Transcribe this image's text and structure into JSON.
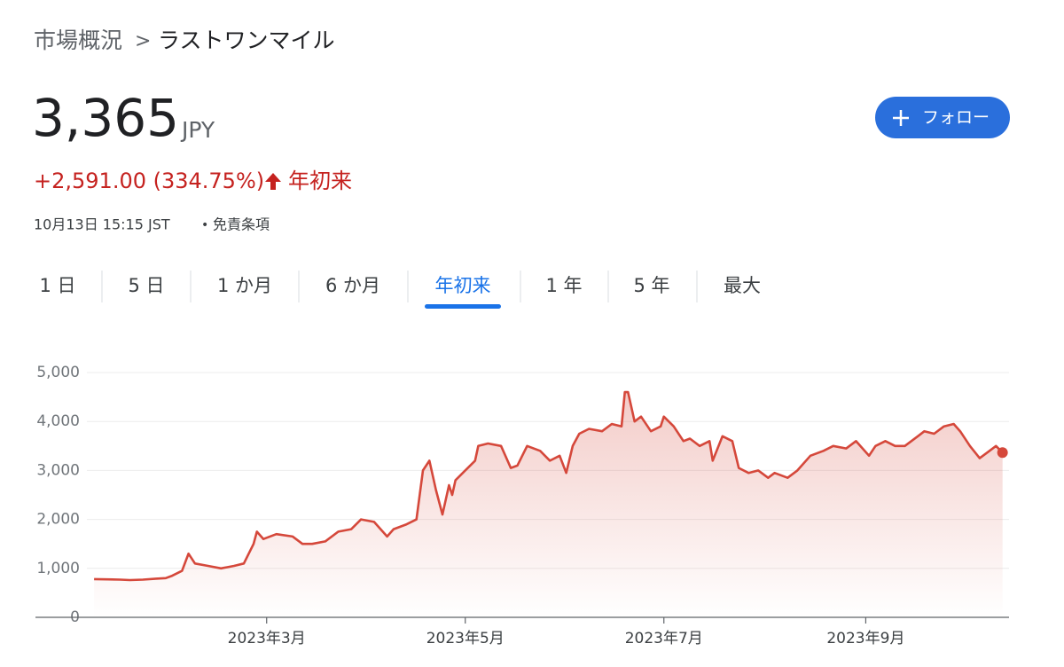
{
  "breadcrumb": {
    "parent": "市場概況",
    "separator": ">",
    "current": "ラストワンマイル"
  },
  "quote": {
    "price": "3,365",
    "currency": "JPY",
    "change": "+2,591.00 (334.75%)",
    "period": "年初来",
    "timestamp": "10月13日 15:15 JST",
    "bullet": "•",
    "disclaimer": "免責条項"
  },
  "follow_button": {
    "label": "フォロー"
  },
  "tabs": {
    "items": [
      "1 日",
      "5 日",
      "1 か月",
      "6 か月",
      "年初来",
      "1 年",
      "5 年",
      "最大"
    ],
    "active": 4
  },
  "chart_data": {
    "type": "line",
    "color": "#d5483b",
    "x": [
      7,
      11,
      15,
      18,
      22,
      26,
      29,
      31,
      34,
      36,
      38,
      42,
      46,
      50,
      53,
      56,
      57,
      59,
      63,
      68,
      71,
      74,
      78,
      82,
      86,
      89,
      93,
      97,
      99,
      103,
      106,
      108,
      110,
      112,
      114,
      116,
      117,
      118,
      121,
      124,
      125,
      128,
      132,
      135,
      137,
      140,
      144,
      147,
      150,
      152,
      154,
      156,
      159,
      163,
      166,
      169,
      170,
      171,
      173,
      175,
      178,
      181,
      182,
      185,
      188,
      190,
      193,
      196,
      197,
      200,
      203,
      205,
      208,
      211,
      214,
      216,
      220,
      223,
      227,
      231,
      234,
      238,
      241,
      245,
      247,
      250,
      253,
      256,
      260,
      262,
      265,
      268,
      271,
      273,
      276,
      279,
      282,
      284,
      286
    ],
    "values": [
      780,
      775,
      770,
      760,
      770,
      790,
      800,
      850,
      950,
      1300,
      1100,
      1050,
      1000,
      1050,
      1100,
      1500,
      1750,
      1600,
      1700,
      1650,
      1500,
      1500,
      1550,
      1750,
      1800,
      2000,
      1950,
      1650,
      1800,
      1900,
      2000,
      3000,
      3200,
      2600,
      2100,
      2700,
      2500,
      2800,
      3000,
      3200,
      3500,
      3550,
      3500,
      3050,
      3100,
      3500,
      3400,
      3200,
      3300,
      2950,
      3500,
      3750,
      3850,
      3800,
      3950,
      3900,
      4600,
      4600,
      4000,
      4100,
      3800,
      3900,
      4100,
      3900,
      3600,
      3650,
      3500,
      3600,
      3200,
      3700,
      3600,
      3050,
      2950,
      3000,
      2850,
      2950,
      2850,
      3000,
      3300,
      3400,
      3500,
      3450,
      3600,
      3300,
      3500,
      3600,
      3500,
      3500,
      3700,
      3800,
      3750,
      3900,
      3950,
      3800,
      3500,
      3250,
      3400,
      3500,
      3365
    ],
    "xlim": [
      -11,
      288
    ],
    "xticks": [
      {
        "value": 60,
        "label": "2023年3月"
      },
      {
        "value": 121,
        "label": "2023年5月"
      },
      {
        "value": 182,
        "label": "2023年7月"
      },
      {
        "value": 244,
        "label": "2023年9月"
      }
    ],
    "ylim": [
      0,
      5000
    ],
    "yticks": [
      0,
      {
        "value": 1000,
        "label": "1,000"
      },
      {
        "value": 2000,
        "label": "2,000"
      },
      {
        "value": 3000,
        "label": "3,000"
      },
      {
        "value": 4000,
        "label": "4,000"
      },
      {
        "value": 5000,
        "label": "5,000"
      }
    ],
    "grid": true
  }
}
